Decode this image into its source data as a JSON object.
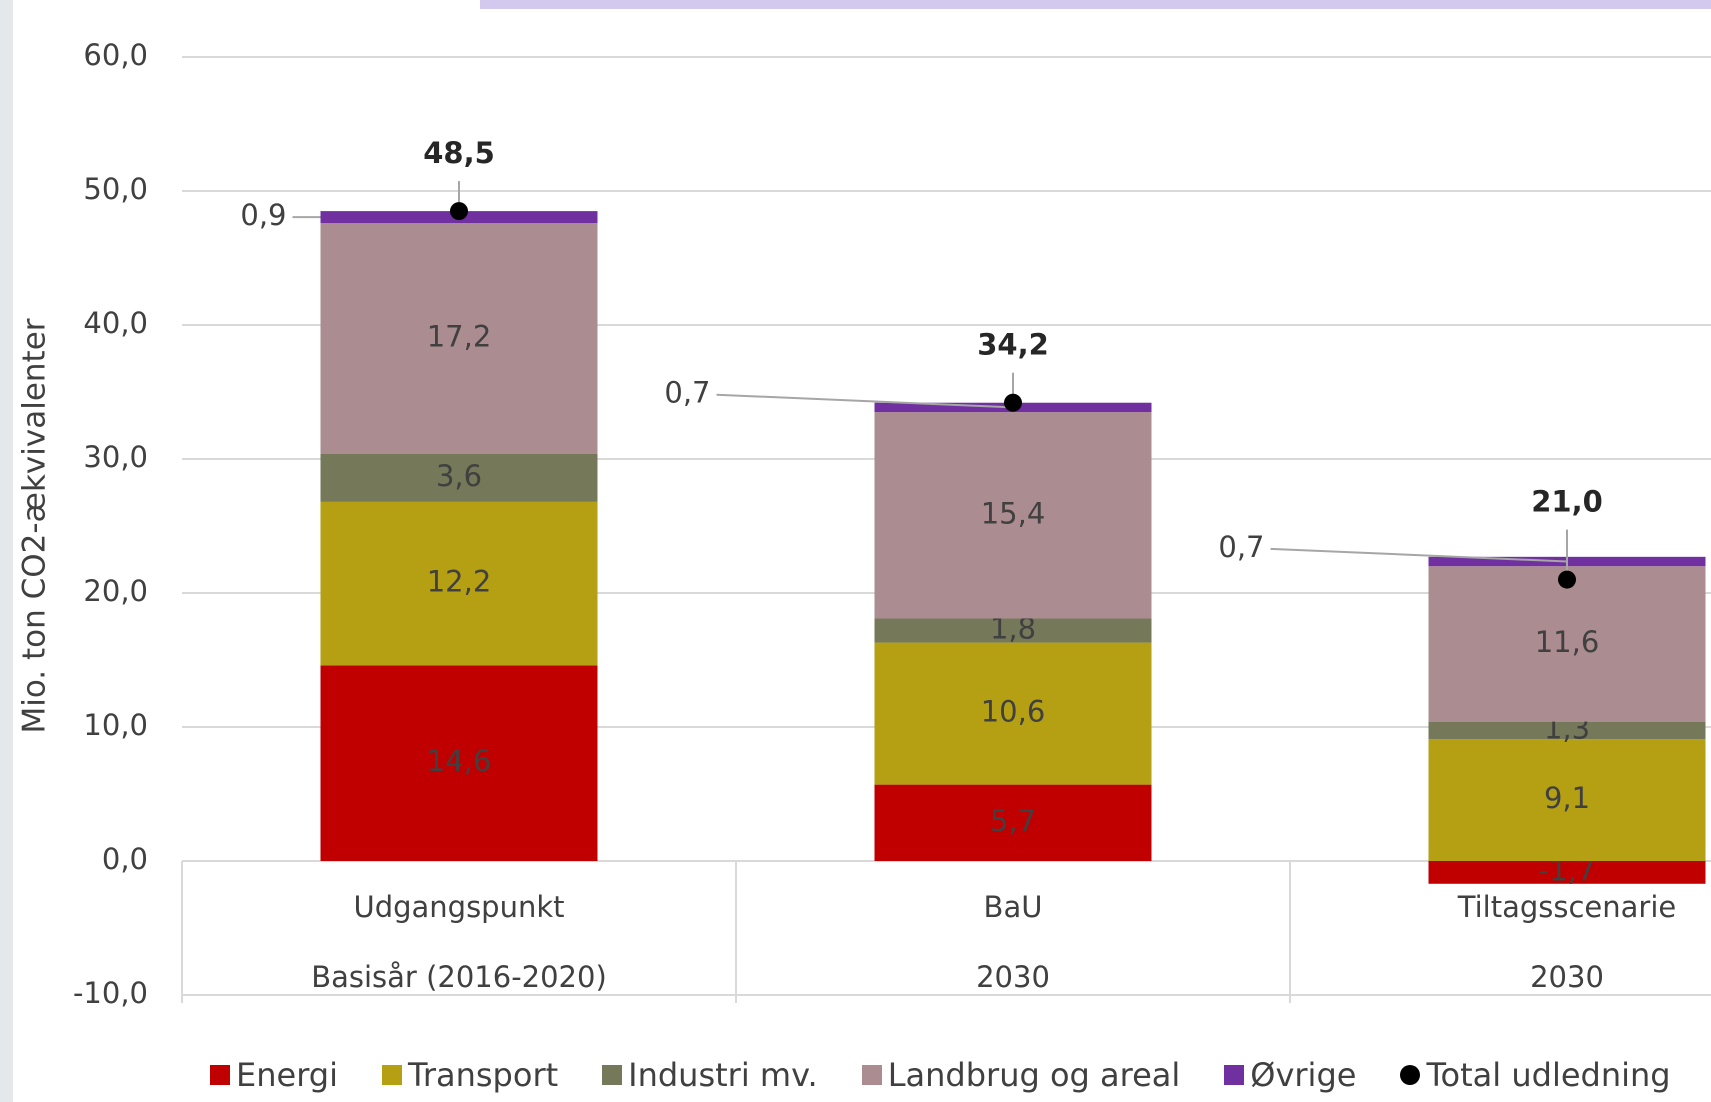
{
  "chart_data": {
    "type": "stacked_bar",
    "y_axis_label": "Mio. ton CO2-ækvivalenter",
    "categories": [
      "Udgangspunkt",
      "BaU",
      "Tiltagsscenarie"
    ],
    "sub_categories": [
      "Basisår (2016-2020)",
      "2030",
      "2030"
    ],
    "ylim": [
      -10,
      60
    ],
    "yticks": [
      {
        "value": -10,
        "label": "-10,0"
      },
      {
        "value": 0,
        "label": "0,0"
      },
      {
        "value": 10,
        "label": "10,0"
      },
      {
        "value": 20,
        "label": "20,0"
      },
      {
        "value": 30,
        "label": "30,0"
      },
      {
        "value": 40,
        "label": "40,0"
      },
      {
        "value": 50,
        "label": "50,0"
      },
      {
        "value": 60,
        "label": "60,0"
      }
    ],
    "grid": true,
    "legend": "bottom",
    "series": [
      {
        "name": "Energi",
        "color": "#c00000",
        "values": [
          14.6,
          5.7,
          -1.7
        ],
        "value_labels": [
          "14,6",
          "5,7",
          "-1,7"
        ]
      },
      {
        "name": "Transport",
        "color": "#b59f13",
        "values": [
          12.2,
          10.6,
          9.1
        ],
        "value_labels": [
          "12,2",
          "10,6",
          "9,1"
        ]
      },
      {
        "name": "Industri mv.",
        "color": "#75795a",
        "values": [
          3.6,
          1.8,
          1.3
        ],
        "value_labels": [
          "3,6",
          "1,8",
          "1,3"
        ]
      },
      {
        "name": "Landbrug og areal",
        "color": "#ab8c91",
        "values": [
          17.2,
          15.4,
          11.6
        ],
        "value_labels": [
          "17,2",
          "15,4",
          "11,6"
        ]
      },
      {
        "name": "Øvrige",
        "color": "#7030a0",
        "values": [
          0.9,
          0.7,
          0.7
        ],
        "value_labels": [
          "0,9",
          "0,7",
          "0,7"
        ]
      }
    ],
    "totals": {
      "name": "Total udledning",
      "color": "#000000",
      "values": [
        48.5,
        34.2,
        21.0
      ],
      "value_labels": [
        "48,5",
        "34,2",
        "21,0"
      ]
    }
  }
}
